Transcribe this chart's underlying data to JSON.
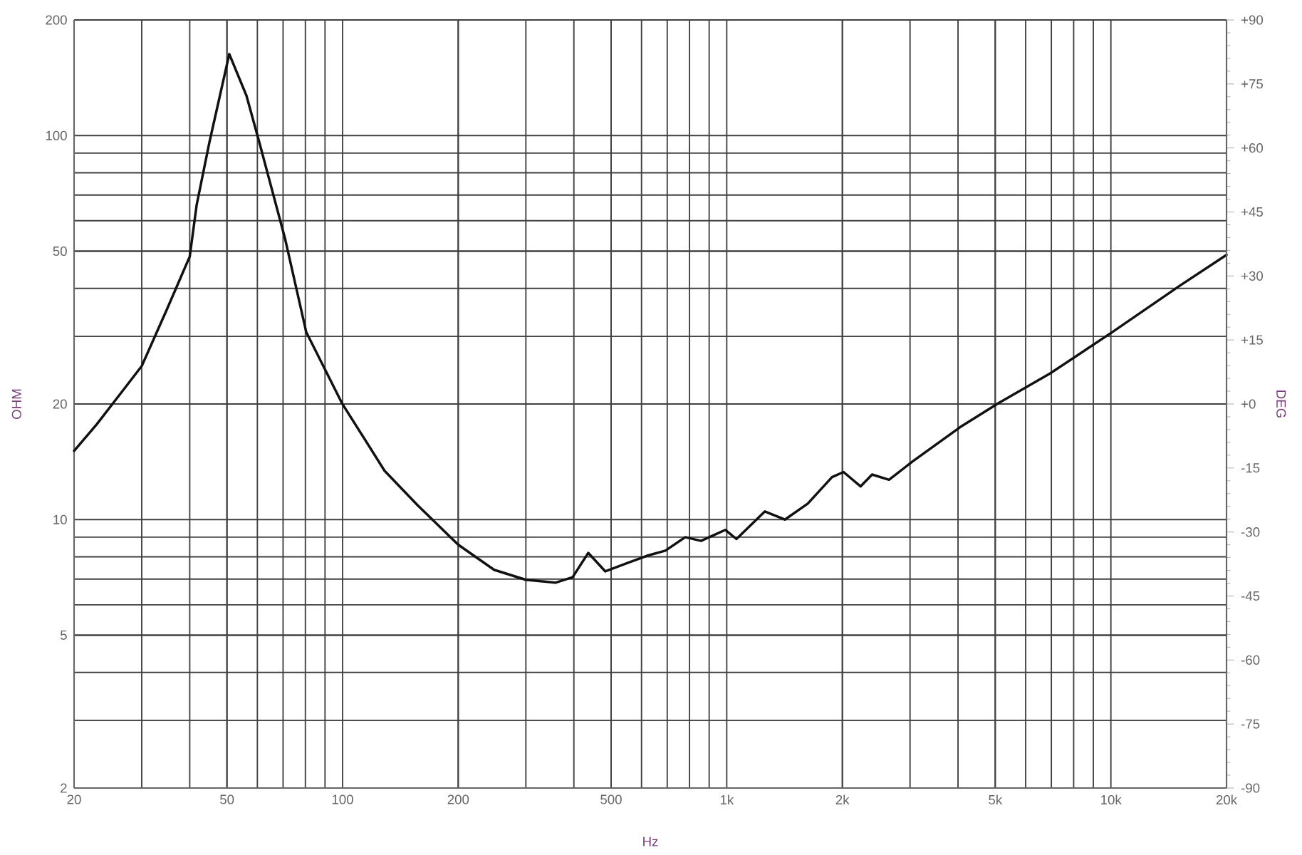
{
  "chart_data": {
    "type": "line",
    "log": "xy",
    "grid": true,
    "xlabel": "Hz",
    "ylabel": "OHM",
    "y2label": "DEG",
    "xlim": [
      20,
      20000
    ],
    "ylim": [
      2,
      200
    ],
    "y2lim": [
      -90,
      90
    ],
    "xticks": [
      20,
      50,
      100,
      200,
      500,
      {
        "value": 1000,
        "label": "1k"
      },
      {
        "value": 2000,
        "label": "2k"
      },
      {
        "value": 5000,
        "label": "5k"
      },
      {
        "value": 10000,
        "label": "10k"
      },
      {
        "value": 20000,
        "label": "20k"
      }
    ],
    "yticks": [
      2,
      5,
      10,
      20,
      50,
      100,
      200
    ],
    "y2ticks": [
      -90,
      -75,
      -60,
      -45,
      -30,
      -15,
      {
        "value": 0,
        "label": "+0"
      },
      {
        "value": 15,
        "label": "+15"
      },
      {
        "value": 30,
        "label": "+30"
      },
      {
        "value": 45,
        "label": "+45"
      },
      {
        "value": 60,
        "label": "+60"
      },
      {
        "value": 75,
        "label": "+75"
      },
      {
        "value": 90,
        "label": "+90"
      }
    ],
    "series": [
      {
        "color": "#111111",
        "x": [
          20,
          22.9,
          27,
          30,
          34.9,
          40,
          41.7,
          45,
          50.7,
          56.2,
          60.7,
          70.8,
          80.4,
          99.6,
          128.6,
          156.7,
          200,
          248,
          300,
          358,
          397,
          436,
          483,
          550,
          620,
          692,
          780,
          857,
          991,
          1060,
          1257,
          1417,
          1625,
          1880,
          2014,
          2230,
          2390,
          2645,
          3055,
          4050,
          5100,
          6940,
          10100,
          15200,
          20000
        ],
        "values": [
          15.1,
          17.7,
          21.9,
          25.1,
          35.3,
          48.4,
          66,
          96,
          163,
          127,
          96,
          54,
          30.8,
          20.1,
          13.4,
          10.9,
          8.6,
          7.4,
          6.97,
          6.85,
          7.08,
          8.19,
          7.33,
          7.7,
          8.05,
          8.3,
          9.0,
          8.8,
          9.4,
          8.9,
          10.5,
          10.0,
          11.0,
          12.9,
          13.3,
          12.2,
          13.1,
          12.7,
          14.2,
          17.4,
          20.1,
          24.0,
          30.8,
          40.8,
          48.9
        ]
      }
    ]
  }
}
